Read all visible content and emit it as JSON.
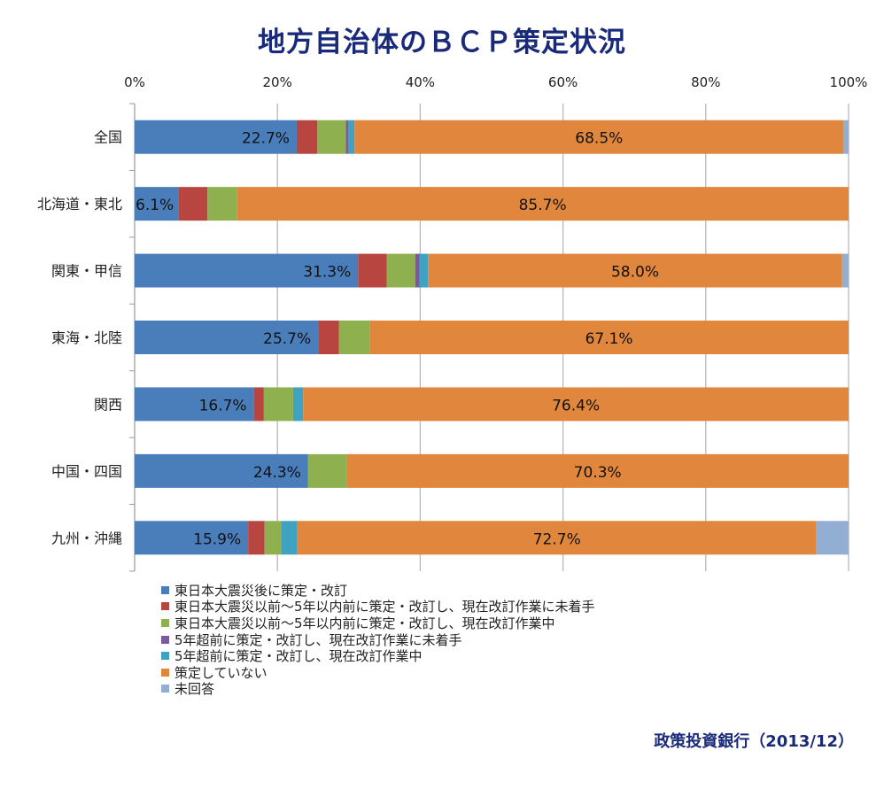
{
  "title": "地方自治体のＢＣＰ策定状況",
  "source": "政策投資銀行（2013/12）",
  "chart_data": {
    "type": "bar",
    "orientation": "horizontal-stacked-100",
    "title": "地方自治体のＢＣＰ策定状況",
    "xlim": [
      0,
      100
    ],
    "x_ticks": [
      "0%",
      "20%",
      "40%",
      "60%",
      "80%",
      "100%"
    ],
    "grid": true,
    "legend_position": "bottom-left",
    "categories": [
      "全国",
      "北海道・東北",
      "関東・甲信",
      "東海・北陸",
      "関西",
      "中国・四国",
      "九州・沖縄"
    ],
    "series": [
      {
        "name": "東日本大震災後に策定・改訂",
        "color": "#4A7EBB",
        "values": [
          22.7,
          6.1,
          31.3,
          25.7,
          16.7,
          24.3,
          15.9
        ],
        "labeled": true
      },
      {
        "name": "東日本大震災以前～5年以内前に策定・改訂し、現在改訂作業に未着手",
        "color": "#B8453F",
        "values": [
          2.9,
          4.1,
          4.0,
          2.9,
          1.4,
          0,
          2.3
        ]
      },
      {
        "name": "東日本大震災以前～5年以内前に策定・改訂し、現在改訂作業中",
        "color": "#8FB04E",
        "values": [
          4.0,
          4.1,
          4.0,
          4.3,
          4.1,
          5.4,
          2.3
        ]
      },
      {
        "name": "5年超前に策定・改訂し、現在改訂作業に未着手",
        "color": "#7A5A9C",
        "values": [
          0.3,
          0,
          0.6,
          0,
          0,
          0,
          0
        ]
      },
      {
        "name": "5年超前に策定・改訂し、現在改訂作業中",
        "color": "#3FA2C0",
        "values": [
          0.9,
          0,
          1.2,
          0,
          1.4,
          0,
          2.3
        ]
      },
      {
        "name": "策定していない",
        "color": "#E0873D",
        "values": [
          68.5,
          85.7,
          58.0,
          67.1,
          76.4,
          70.3,
          72.7
        ],
        "labeled": true
      },
      {
        "name": "未回答",
        "color": "#93AED3",
        "values": [
          0.7,
          0,
          0.9,
          0,
          0,
          0,
          4.5
        ]
      }
    ]
  }
}
